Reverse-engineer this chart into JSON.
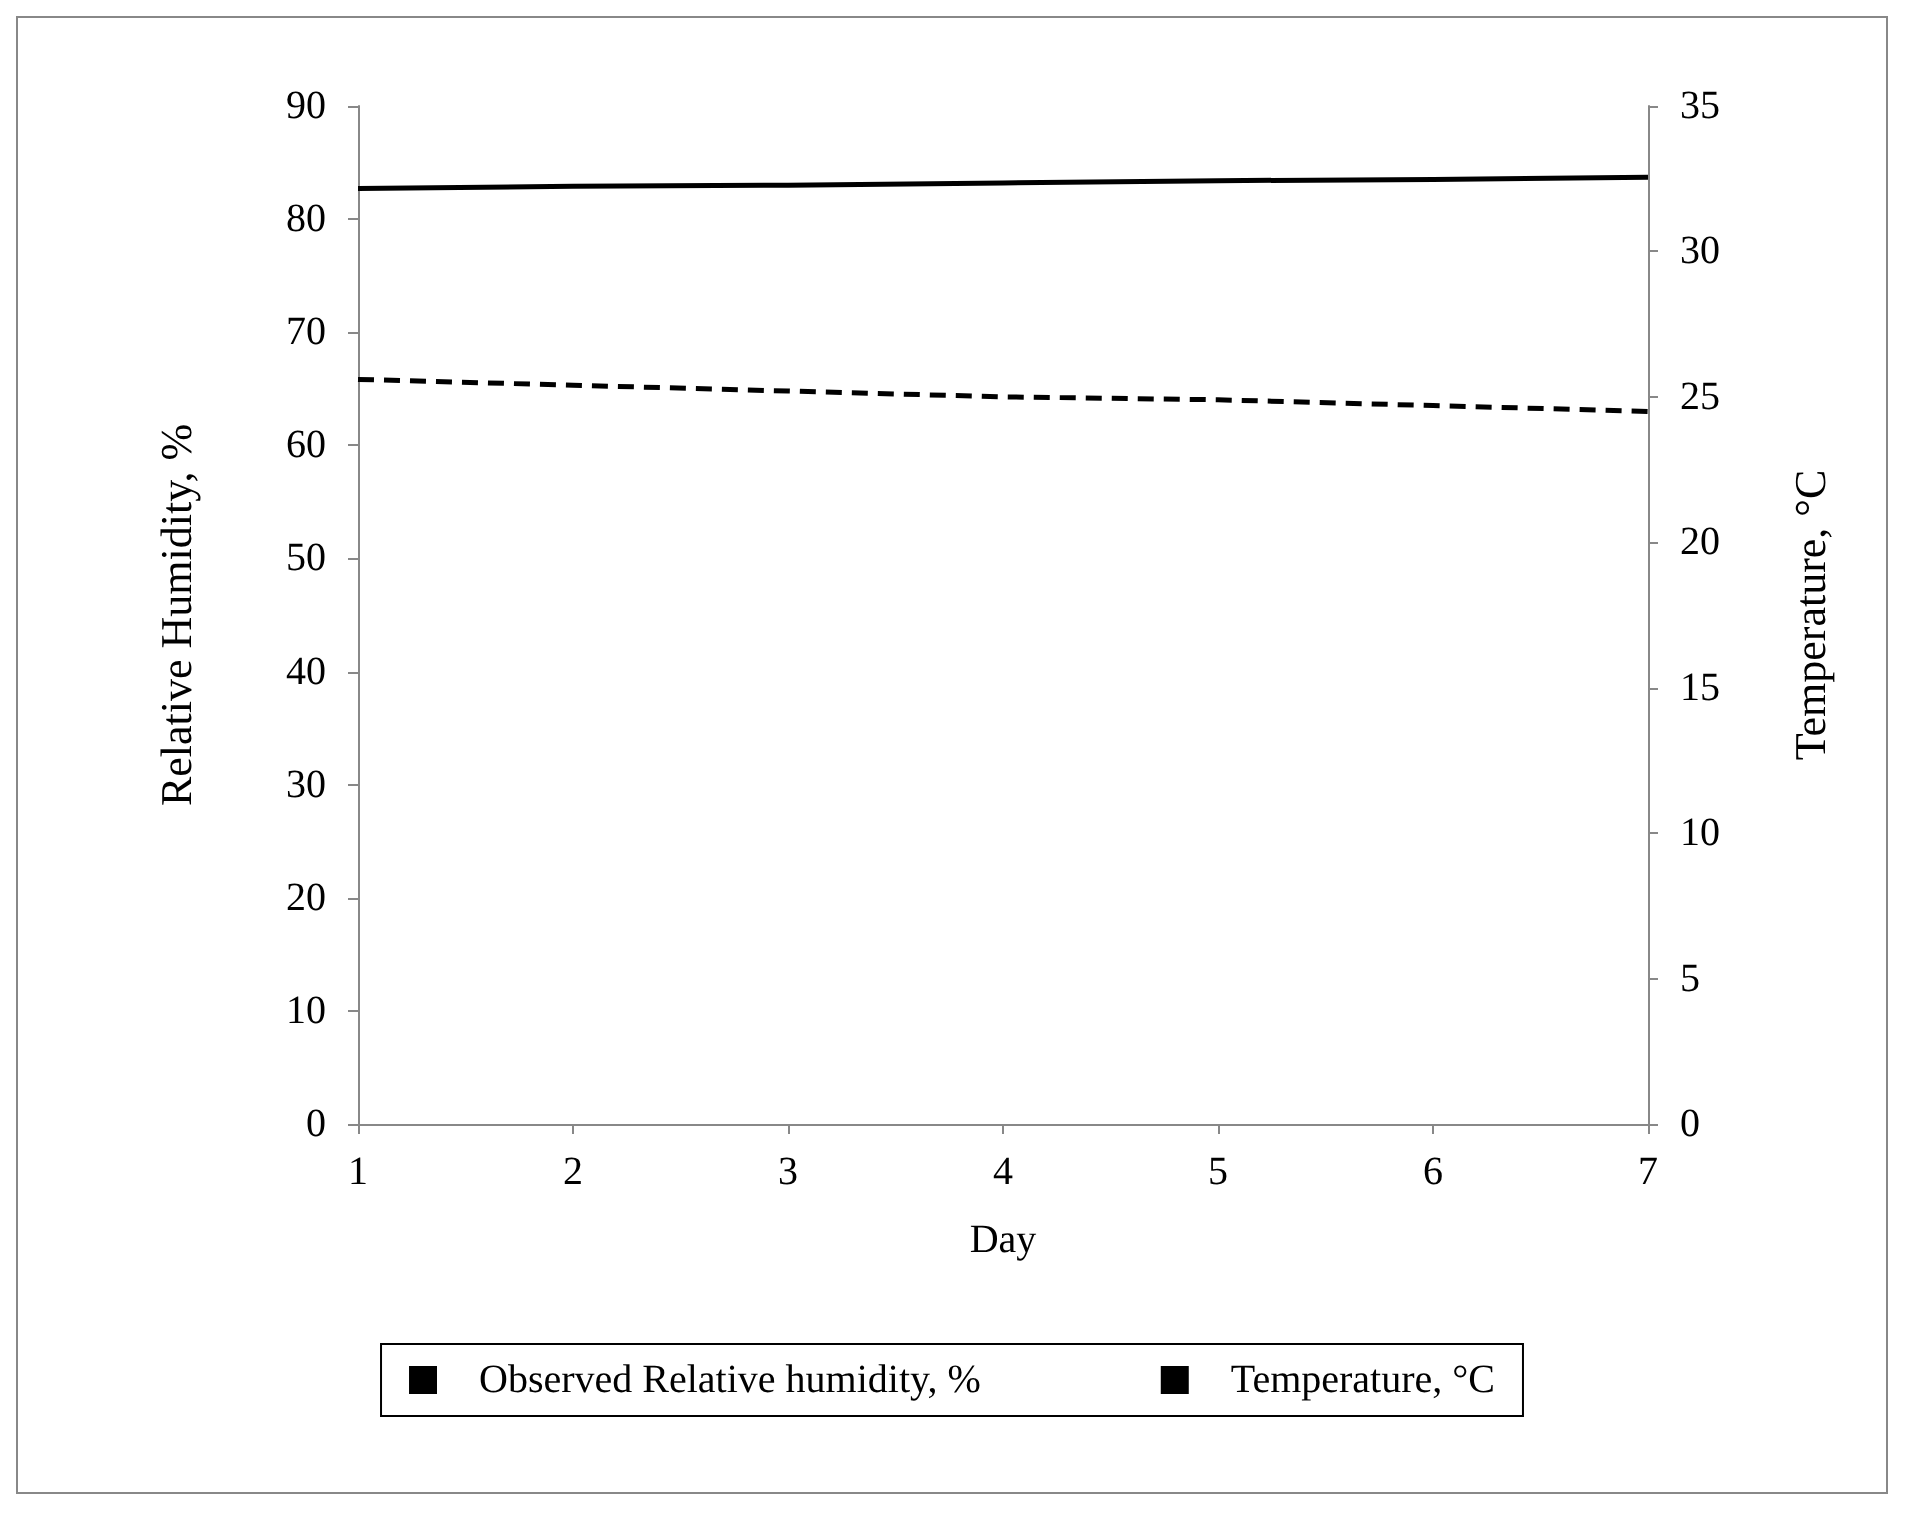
{
  "chart_data": {
    "type": "line",
    "xlabel": "Day",
    "ylabel": "Relative Humidity, %",
    "y2label": "Temperature, °C",
    "x": [
      1,
      2,
      3,
      4,
      5,
      6,
      7
    ],
    "xlim": [
      1,
      7
    ],
    "xticks": [
      1,
      2,
      3,
      4,
      5,
      6,
      7
    ],
    "ylim": [
      0,
      90
    ],
    "yticks": [
      0,
      10,
      20,
      30,
      40,
      50,
      60,
      70,
      80,
      90
    ],
    "y2lim": [
      0,
      35
    ],
    "y2ticks": [
      0,
      5,
      10,
      15,
      20,
      25,
      30,
      35
    ],
    "series": [
      {
        "name": "Observed Relative humidity, %",
        "color": "#000000",
        "line_style": "solid",
        "values": [
          82.7,
          82.9,
          83.0,
          83.2,
          83.4,
          83.5,
          83.7
        ]
      },
      {
        "name": "Temperature, °C",
        "color": "#000000",
        "line_style": "dashed",
        "axis": "y2",
        "values": [
          25.6,
          25.4,
          25.2,
          25.0,
          24.9,
          24.7,
          24.5
        ]
      }
    ],
    "grid": false,
    "legend": "bottom",
    "marker": "none"
  }
}
